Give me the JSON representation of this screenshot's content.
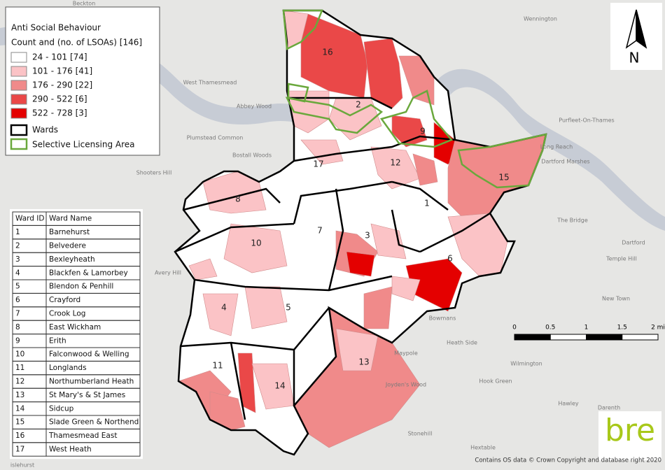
{
  "legend": {
    "title": "Anti Social Behaviour",
    "subtitle": "Count and (no. of LSOAs) [146]",
    "classes": [
      {
        "label": "24 - 101 [74]",
        "color": "#ffffff"
      },
      {
        "label": "101 - 176 [41]",
        "color": "#fbc3c6"
      },
      {
        "label": "176 - 290 [22]",
        "color": "#f08a8a"
      },
      {
        "label": "290 - 522 [6]",
        "color": "#ea4848"
      },
      {
        "label": "522 - 728 [3]",
        "color": "#e40000"
      }
    ],
    "wards_label": "Wards",
    "licensing_label": "Selective Licensing Area",
    "licensing_color": "#6aa83c"
  },
  "ward_table": {
    "header": [
      "Ward ID",
      "Ward Name"
    ],
    "rows": [
      [
        "1",
        "Barnehurst"
      ],
      [
        "2",
        "Belvedere"
      ],
      [
        "3",
        "Bexleyheath"
      ],
      [
        "4",
        "Blackfen & Lamorbey"
      ],
      [
        "5",
        "Blendon & Penhill"
      ],
      [
        "6",
        "Crayford"
      ],
      [
        "7",
        "Crook Log"
      ],
      [
        "8",
        "East Wickham"
      ],
      [
        "9",
        "Erith"
      ],
      [
        "10",
        "Falconwood & Welling"
      ],
      [
        "11",
        "Longlands"
      ],
      [
        "12",
        "Northumberland Heath"
      ],
      [
        "13",
        "St Mary's & St James"
      ],
      [
        "14",
        "Sidcup"
      ],
      [
        "15",
        "Slade Green & Northend"
      ],
      [
        "16",
        "Thamesmead East"
      ],
      [
        "17",
        "West Heath"
      ]
    ]
  },
  "ward_labels": [
    "1",
    "2",
    "3",
    "4",
    "5",
    "6",
    "7",
    "8",
    "9",
    "10",
    "11",
    "12",
    "13",
    "14",
    "15",
    "16",
    "17"
  ],
  "place_names": [
    "Beckton",
    "Wennington",
    "West Thamesmead",
    "Abbey Wood",
    "Purfleet-On-Thames",
    "Long Reach",
    "Dartford Marshes",
    "Shooters Hill",
    "Plumstead Common",
    "Bostall Woods",
    "The Bridge",
    "Dartford",
    "Temple Hill",
    "New Town",
    "Bowmans",
    "Maypole",
    "Heath Side",
    "Wilmington",
    "Hook Green",
    "Joyden's Wood",
    "Hawley",
    "Darenth",
    "Stonehill",
    "Hextable",
    "Avery Hill",
    "islehurst"
  ],
  "scale_bar": {
    "labels": [
      "0",
      "0.5",
      "1",
      "1.5",
      "2 mi"
    ]
  },
  "north_arrow": "N",
  "logo": "bre",
  "attribution": "Contains OS data © Crown Copyright and database right 2020"
}
